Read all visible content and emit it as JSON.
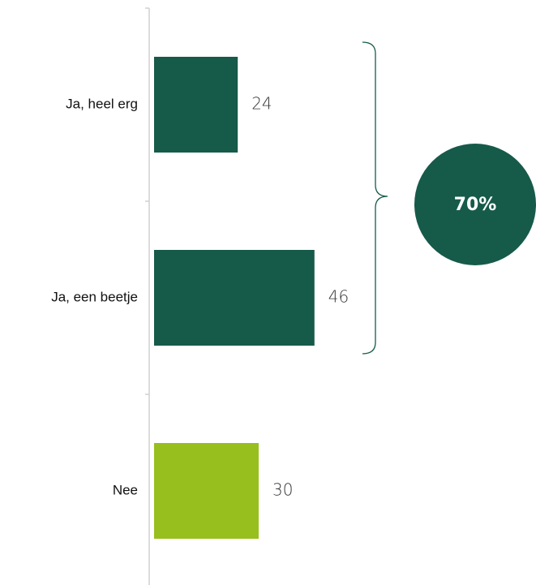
{
  "chart_data": {
    "type": "bar",
    "orientation": "horizontal",
    "categories": [
      "Ja, heel erg",
      "Ja, een beetje",
      "Nee"
    ],
    "values": [
      24,
      46,
      30
    ],
    "colors": [
      "#165a4a",
      "#165a4a",
      "#97bf1e"
    ],
    "annotation": "70%"
  }
}
